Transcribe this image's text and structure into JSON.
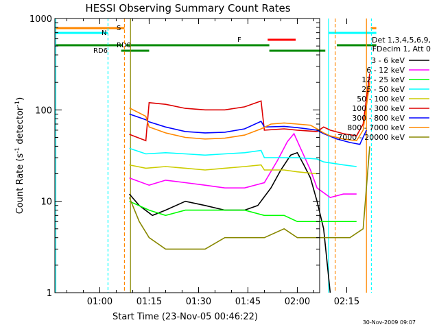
{
  "chart_data": {
    "type": "line",
    "title": "HESSI Observing Summary Count Rates",
    "xlabel": "Start Time (23-Nov-05 00:46:22)",
    "ylabel": "Count Rate (s",
    "ylabel_sup1": "-1",
    "ylabel_mid": " detector",
    "ylabel_sup2": "-1",
    "ylabel_end": ")",
    "yscale": "log",
    "ylim": [
      1,
      1000
    ],
    "xlim": [
      "00:46:22",
      "02:24:00"
    ],
    "x_ticks": [
      "01:00",
      "01:15",
      "01:30",
      "01:45",
      "02:00",
      "02:15"
    ],
    "y_ticks": [
      "1",
      "10",
      "100",
      "1000"
    ],
    "timestamp": "30-Nov-2009 09:07",
    "legend_header": [
      "Det 1,3,4,5,6,9,",
      "FDecim 1, Att 0"
    ],
    "series": [
      {
        "name": "3 - 6 keV",
        "color": "#000000",
        "points": [
          [
            "01:09",
            12
          ],
          [
            "01:12",
            9
          ],
          [
            "01:16",
            7
          ],
          [
            "01:20",
            8
          ],
          [
            "01:26",
            10
          ],
          [
            "01:32",
            9
          ],
          [
            "01:38",
            8
          ],
          [
            "01:44",
            8
          ],
          [
            "01:48",
            9
          ],
          [
            "01:52",
            14
          ],
          [
            "01:55",
            22
          ],
          [
            "01:58",
            32
          ],
          [
            "02:00",
            34
          ],
          [
            "02:02",
            25
          ],
          [
            "02:04",
            18
          ],
          [
            "02:06",
            10
          ],
          [
            "02:08",
            5
          ],
          [
            "02:10",
            1
          ]
        ]
      },
      {
        "name": "6 - 12 keV",
        "color": "#ff00ff",
        "points": [
          [
            "01:09",
            18
          ],
          [
            "01:15",
            15
          ],
          [
            "01:20",
            17
          ],
          [
            "01:26",
            16
          ],
          [
            "01:32",
            15
          ],
          [
            "01:38",
            14
          ],
          [
            "01:44",
            14
          ],
          [
            "01:50",
            16
          ],
          [
            "01:54",
            28
          ],
          [
            "01:57",
            45
          ],
          [
            "01:59",
            55
          ],
          [
            "02:01",
            38
          ],
          [
            "02:04",
            22
          ],
          [
            "02:06",
            14
          ],
          [
            "02:10",
            11
          ],
          [
            "02:14",
            12
          ],
          [
            "02:18",
            12
          ]
        ]
      },
      {
        "name": "12 - 25 keV",
        "color": "#00ff00",
        "points": [
          [
            "01:09",
            10
          ],
          [
            "01:15",
            8
          ],
          [
            "01:20",
            7
          ],
          [
            "01:26",
            8
          ],
          [
            "01:32",
            8
          ],
          [
            "01:38",
            8
          ],
          [
            "01:44",
            8
          ],
          [
            "01:50",
            7
          ],
          [
            "01:56",
            7
          ],
          [
            "02:00",
            6
          ],
          [
            "02:04",
            6
          ],
          [
            "02:08",
            6
          ],
          [
            "02:14",
            6
          ],
          [
            "02:18",
            6
          ]
        ]
      },
      {
        "name": "25 - 50 keV",
        "color": "#00ffff",
        "points": [
          [
            "01:09",
            38
          ],
          [
            "01:14",
            33
          ],
          [
            "01:20",
            34
          ],
          [
            "01:26",
            33
          ],
          [
            "01:32",
            32
          ],
          [
            "01:38",
            33
          ],
          [
            "01:44",
            34
          ],
          [
            "01:49",
            36
          ],
          [
            "01:50",
            30
          ],
          [
            "01:56",
            30
          ],
          [
            "02:00",
            30
          ],
          [
            "02:06",
            29
          ],
          [
            "02:08",
            27
          ],
          [
            "02:14",
            25
          ],
          [
            "02:18",
            24
          ]
        ]
      },
      {
        "name": "50 - 100 keV",
        "color": "#cccc00",
        "points": [
          [
            "01:09",
            25
          ],
          [
            "01:14",
            23
          ],
          [
            "01:20",
            24
          ],
          [
            "01:26",
            23
          ],
          [
            "01:32",
            22
          ],
          [
            "01:38",
            23
          ],
          [
            "01:44",
            24
          ],
          [
            "01:49",
            25
          ],
          [
            "01:50",
            22
          ],
          [
            "01:56",
            22
          ],
          [
            "02:00",
            21
          ],
          [
            "02:06",
            20
          ]
        ]
      },
      {
        "name": "100 - 300 keV",
        "color": "#dd0000",
        "points": [
          [
            "01:09",
            54
          ],
          [
            "01:14",
            46
          ],
          [
            "01:15",
            120
          ],
          [
            "01:20",
            115
          ],
          [
            "01:26",
            104
          ],
          [
            "01:32",
            100
          ],
          [
            "01:38",
            100
          ],
          [
            "01:44",
            108
          ],
          [
            "01:49",
            125
          ],
          [
            "01:50",
            60
          ],
          [
            "01:56",
            62
          ],
          [
            "02:00",
            60
          ],
          [
            "02:06",
            58
          ],
          [
            "02:08",
            65
          ],
          [
            "02:10",
            60
          ],
          [
            "02:14",
            55
          ],
          [
            "02:18",
            52
          ],
          [
            "02:20",
            70
          ],
          [
            "02:22",
            250
          ]
        ]
      },
      {
        "name": "300 - 800 keV",
        "color": "#0000ff",
        "points": [
          [
            "01:09",
            90
          ],
          [
            "01:14",
            78
          ],
          [
            "01:15",
            74
          ],
          [
            "01:20",
            65
          ],
          [
            "01:26",
            58
          ],
          [
            "01:32",
            56
          ],
          [
            "01:38",
            57
          ],
          [
            "01:44",
            62
          ],
          [
            "01:49",
            75
          ],
          [
            "01:50",
            65
          ],
          [
            "01:56",
            66
          ],
          [
            "02:00",
            64
          ],
          [
            "02:06",
            60
          ],
          [
            "02:08",
            55
          ],
          [
            "02:12",
            48
          ],
          [
            "02:16",
            44
          ],
          [
            "02:19",
            42
          ],
          [
            "02:21",
            60
          ]
        ]
      },
      {
        "name": "800 - 7000 keV",
        "color": "#ff8800",
        "points": [
          [
            "01:09",
            105
          ],
          [
            "01:14",
            85
          ],
          [
            "01:15",
            65
          ],
          [
            "01:20",
            56
          ],
          [
            "01:26",
            50
          ],
          [
            "01:32",
            48
          ],
          [
            "01:38",
            49
          ],
          [
            "01:44",
            53
          ],
          [
            "01:49",
            62
          ],
          [
            "01:52",
            70
          ],
          [
            "01:56",
            72
          ],
          [
            "02:00",
            70
          ],
          [
            "02:04",
            68
          ],
          [
            "02:06",
            62
          ],
          [
            "02:08",
            56
          ],
          [
            "02:10",
            52
          ],
          [
            "02:14",
            48
          ],
          [
            "02:18",
            46
          ],
          [
            "02:20",
            60
          ],
          [
            "02:22",
            200
          ]
        ]
      },
      {
        "name": "7000 - 20000 keV",
        "color": "#888800",
        "points": [
          [
            "01:09",
            11
          ],
          [
            "01:12",
            6
          ],
          [
            "01:15",
            4
          ],
          [
            "01:20",
            3
          ],
          [
            "01:26",
            3
          ],
          [
            "01:32",
            3
          ],
          [
            "01:38",
            4
          ],
          [
            "01:44",
            4
          ],
          [
            "01:50",
            4
          ],
          [
            "01:56",
            5
          ],
          [
            "02:00",
            4
          ],
          [
            "02:04",
            4
          ],
          [
            "02:08",
            4
          ],
          [
            "02:12",
            4
          ],
          [
            "02:16",
            4
          ],
          [
            "02:20",
            5
          ],
          [
            "02:22",
            40
          ]
        ]
      }
    ],
    "flags": {
      "S": {
        "label": "S",
        "color": "#ff8800"
      },
      "N": {
        "label": "N",
        "color": "#00ffff"
      },
      "RD0": {
        "label": "RD0",
        "color": "#008800"
      },
      "RD6": {
        "label": "RD6",
        "color": "#008800"
      },
      "F": {
        "label": "F",
        "color": "#ff0000"
      }
    }
  }
}
